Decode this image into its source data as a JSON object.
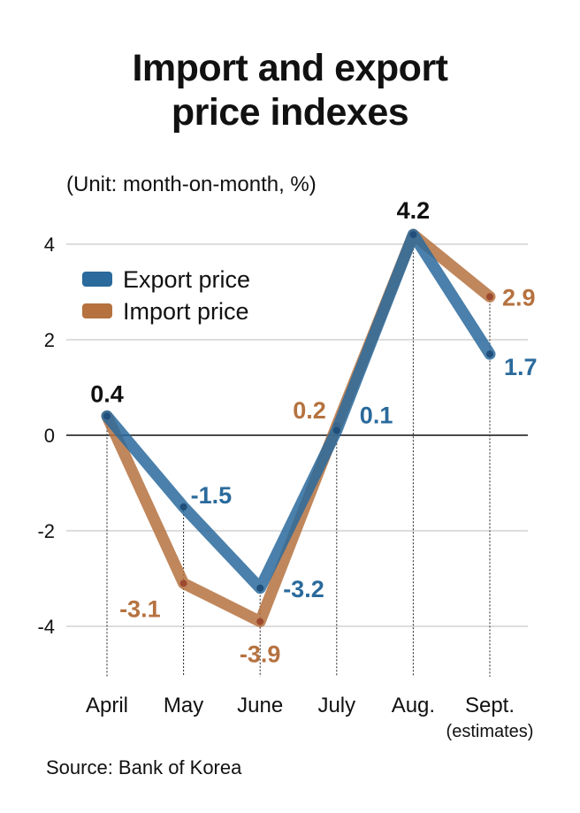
{
  "title_line1": "Import and export",
  "title_line2": "price indexes",
  "unit": "(Unit: month-on-month, %)",
  "source": "Source: Bank of Korea",
  "colors": {
    "export": "#2a6a9c",
    "import": "#b5723f"
  },
  "chart_data": {
    "type": "line",
    "categories": [
      "April",
      "May",
      "June",
      "July",
      "Aug.",
      "Sept."
    ],
    "category_note": "(estimates)",
    "ylim": [
      -5,
      4.5
    ],
    "yticks": [
      4,
      2,
      0,
      -2,
      -4
    ],
    "grid": true,
    "legend": "top-left",
    "series": [
      {
        "name": "Export price",
        "values": [
          0.4,
          -1.5,
          -3.2,
          0.1,
          4.2,
          1.7
        ],
        "labels": [
          "0.4",
          "-1.5",
          "-3.2",
          "0.1",
          "4.2",
          "1.7"
        ]
      },
      {
        "name": "Import price",
        "values": [
          0.4,
          -3.1,
          -3.9,
          0.2,
          4.2,
          2.9
        ],
        "labels": [
          "0.4",
          "-3.1",
          "-3.9",
          "0.2",
          "4.2",
          "2.9"
        ]
      }
    ]
  }
}
